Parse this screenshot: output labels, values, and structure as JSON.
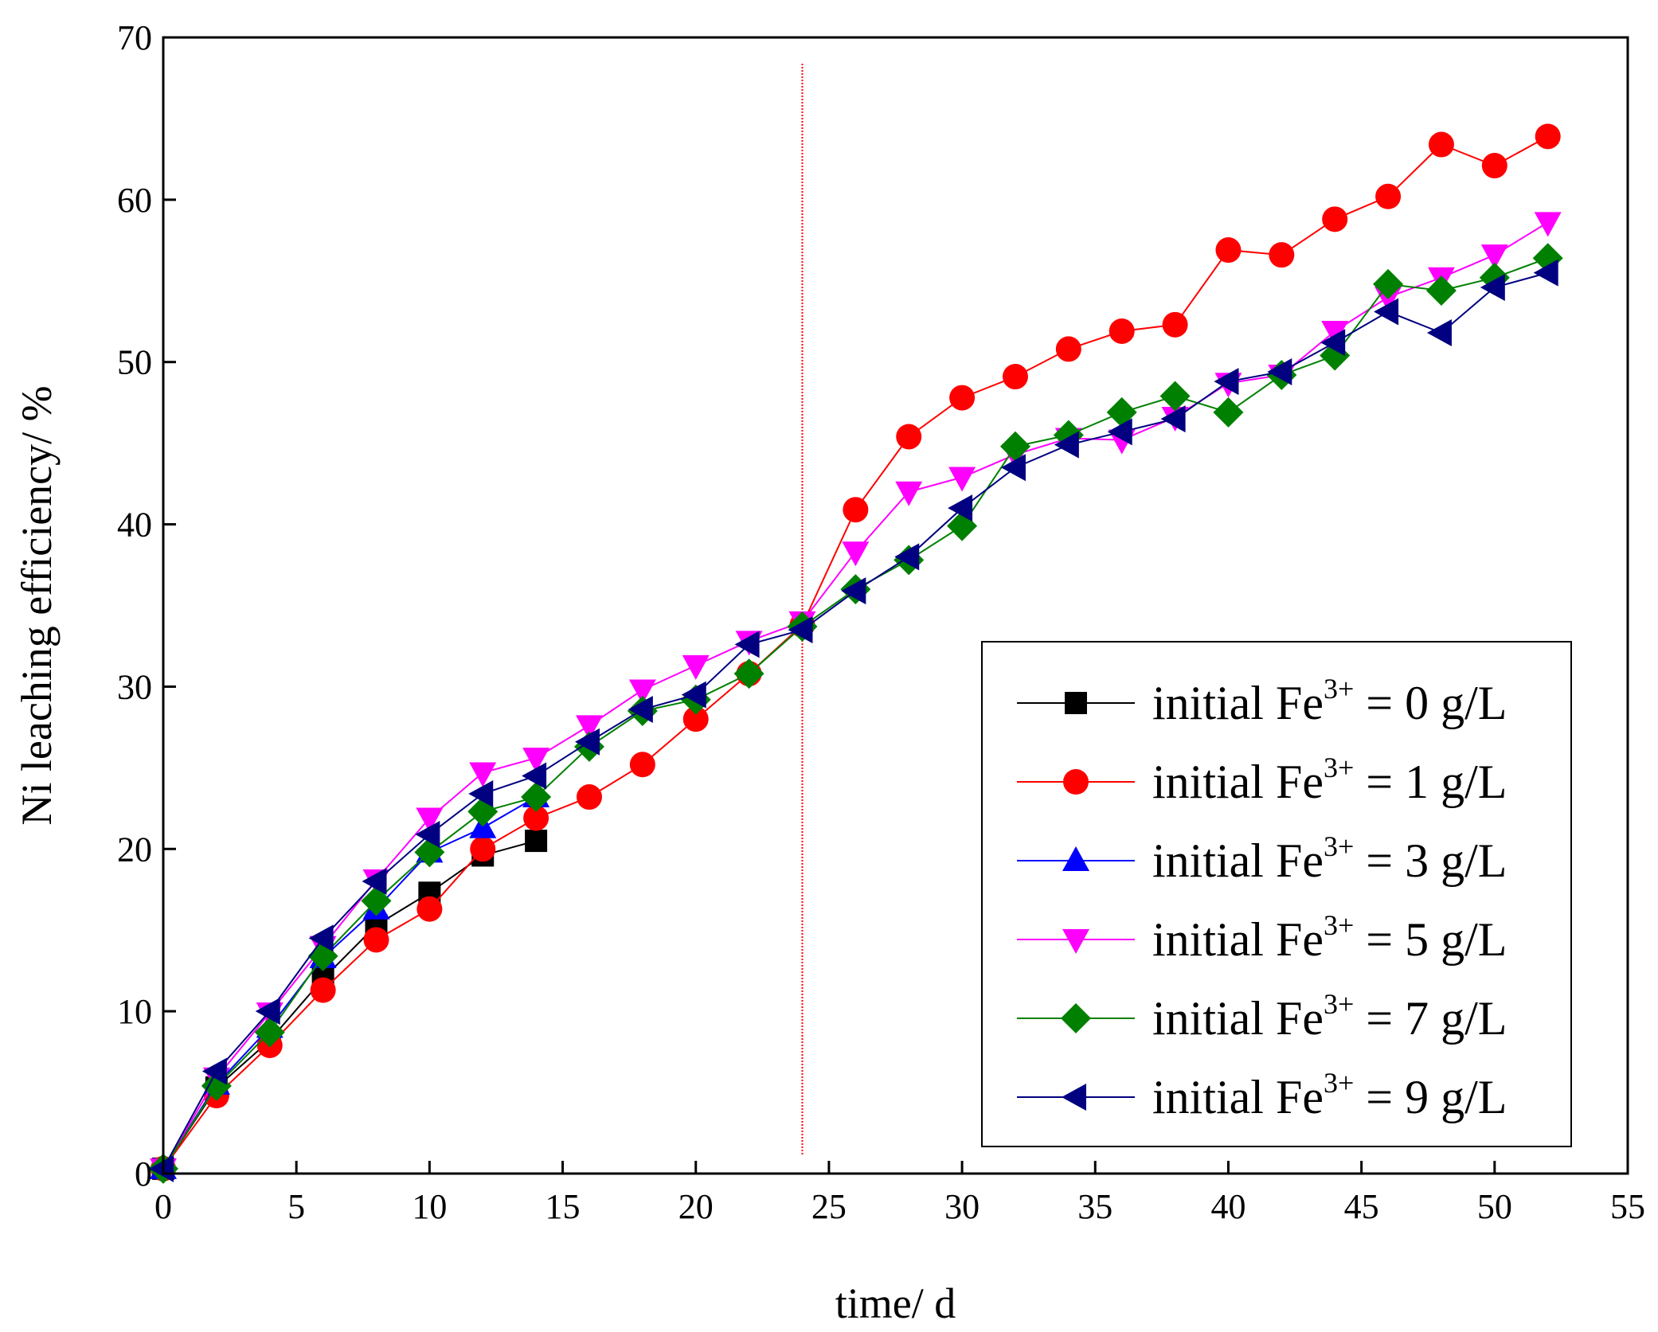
{
  "chart_data": {
    "type": "line",
    "title": "",
    "xlabel": "time/ d",
    "ylabel": "Ni leaching efficiency/ %",
    "xlim": [
      0,
      55
    ],
    "ylim": [
      0,
      70
    ],
    "x_ticks": [
      0,
      5,
      10,
      15,
      20,
      25,
      30,
      35,
      40,
      45,
      50,
      55
    ],
    "y_ticks": [
      0,
      10,
      20,
      30,
      40,
      50,
      60,
      70
    ],
    "grid": false,
    "legend_position": "bottom-right",
    "annotations": [
      {
        "type": "vertical-line",
        "x": 24,
        "color": "#ff0000",
        "style": "dotted"
      }
    ],
    "series": [
      {
        "name": "initial Fe3+ = 0 g/L",
        "label_prefix": "initial Fe",
        "label_sup": "3+",
        "label_suffix": " = 0 g/L",
        "color": "#000000",
        "marker": "square",
        "x": [
          0,
          2,
          4,
          6,
          8,
          10,
          12,
          14
        ],
        "y": [
          0.3,
          5.3,
          8.2,
          12.0,
          15.3,
          17.3,
          19.6,
          20.5
        ]
      },
      {
        "name": "initial Fe3+ = 1 g/L",
        "label_prefix": "initial Fe",
        "label_sup": "3+",
        "label_suffix": " = 1 g/L",
        "color": "#ff0000",
        "marker": "circle",
        "x": [
          0,
          2,
          4,
          6,
          8,
          10,
          12,
          14,
          16,
          18,
          20,
          22,
          24,
          26,
          28,
          30,
          32,
          34,
          36,
          38,
          40,
          42,
          44,
          46,
          48,
          50,
          52
        ],
        "y": [
          0.3,
          4.8,
          7.9,
          11.3,
          14.4,
          16.3,
          20.0,
          21.9,
          23.2,
          25.2,
          28.0,
          30.8,
          33.8,
          40.9,
          45.4,
          47.8,
          49.1,
          50.8,
          51.9,
          52.3,
          56.9,
          56.6,
          58.8,
          60.2,
          63.4,
          62.1,
          63.9
        ]
      },
      {
        "name": "initial Fe3+ = 3 g/L",
        "label_prefix": "initial Fe",
        "label_sup": "3+",
        "label_suffix": " = 3 g/L",
        "color": "#0000ff",
        "marker": "triangle-up",
        "x": [
          0,
          2,
          4,
          6,
          8,
          10,
          12,
          14
        ],
        "y": [
          0.3,
          5.5,
          9.0,
          13.3,
          16.3,
          19.8,
          21.3,
          23.2
        ]
      },
      {
        "name": "initial Fe3+ = 5 g/L",
        "label_prefix": "initial Fe",
        "label_sup": "3+",
        "label_suffix": " = 5 g/L",
        "color": "#ff00ff",
        "marker": "triangle-down",
        "x": [
          0,
          2,
          4,
          6,
          8,
          10,
          12,
          14,
          16,
          18,
          20,
          22,
          24,
          26,
          28,
          30,
          32,
          34,
          36,
          38,
          40,
          42,
          44,
          46,
          48,
          50,
          52
        ],
        "y": [
          0.3,
          5.9,
          9.9,
          14.0,
          18.1,
          21.9,
          24.7,
          25.6,
          27.6,
          29.8,
          31.3,
          32.8,
          34.0,
          38.3,
          42.0,
          42.9,
          44.3,
          45.3,
          45.2,
          46.6,
          48.7,
          49.2,
          51.9,
          54.0,
          55.2,
          56.6,
          58.6
        ]
      },
      {
        "name": "initial Fe3+ = 7 g/L",
        "label_prefix": "initial Fe",
        "label_sup": "3+",
        "label_suffix": " = 7 g/L",
        "color": "#008000",
        "marker": "diamond",
        "x": [
          0,
          2,
          4,
          6,
          8,
          10,
          12,
          14,
          16,
          18,
          20,
          22,
          24,
          26,
          28,
          30,
          32,
          34,
          36,
          38,
          40,
          42,
          44,
          46,
          48,
          50,
          52
        ],
        "y": [
          0.3,
          5.4,
          8.7,
          13.4,
          16.8,
          19.8,
          22.3,
          23.2,
          26.3,
          28.5,
          29.2,
          30.8,
          33.7,
          36.0,
          37.8,
          39.9,
          44.8,
          45.5,
          46.9,
          47.9,
          46.9,
          49.2,
          50.4,
          54.8,
          54.4,
          55.2,
          56.4
        ]
      },
      {
        "name": "initial Fe3+ = 9 g/L",
        "label_prefix": "initial Fe",
        "label_sup": "3+",
        "label_suffix": " = 9 g/L",
        "color": "#000080",
        "marker": "triangle-left",
        "x": [
          0,
          2,
          4,
          6,
          8,
          10,
          12,
          14,
          16,
          18,
          20,
          22,
          24,
          26,
          28,
          30,
          32,
          34,
          36,
          38,
          40,
          42,
          44,
          46,
          48,
          50,
          52
        ],
        "y": [
          0.3,
          6.3,
          10.0,
          14.5,
          18.0,
          20.9,
          23.4,
          24.5,
          26.6,
          28.6,
          29.5,
          32.6,
          33.5,
          35.9,
          38.0,
          41.0,
          43.5,
          44.9,
          45.7,
          46.5,
          48.8,
          49.4,
          51.2,
          53.1,
          51.8,
          54.6,
          55.5
        ]
      }
    ]
  }
}
